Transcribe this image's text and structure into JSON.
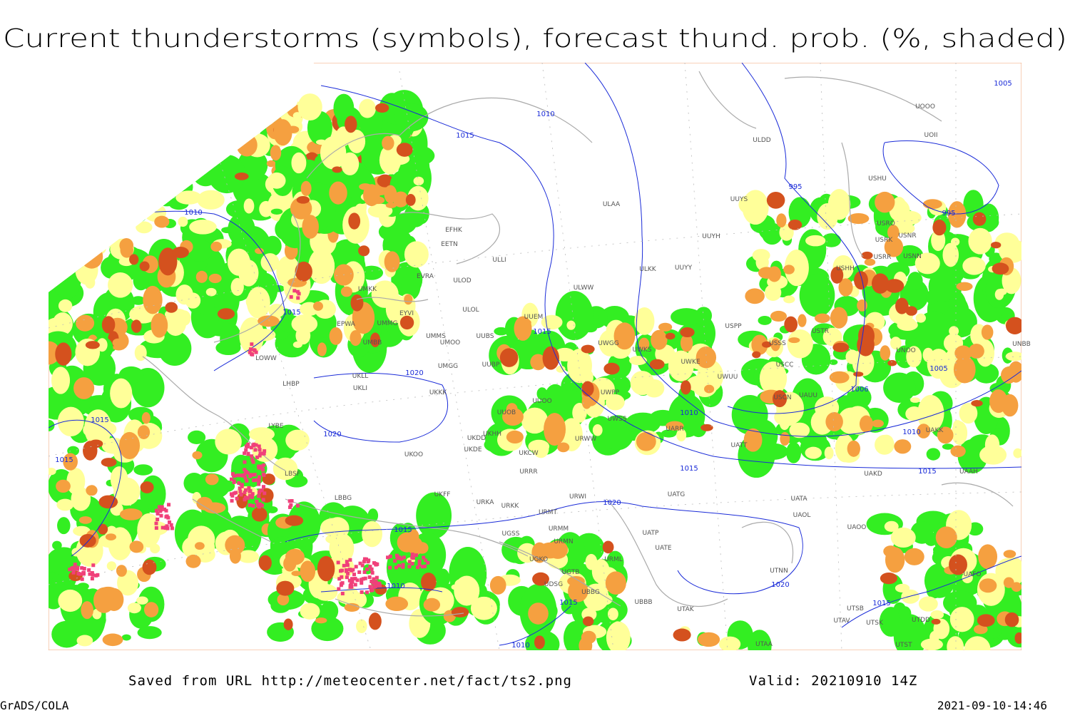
{
  "header": {
    "title": "Current thunderstorms (symbols), forecast thund. prob. (%, shaded)"
  },
  "footer": {
    "source": "Saved from URL http://meteocenter.net/fact/ts2.png",
    "valid": "Valid: 20210910 14Z",
    "software": "GrADS/COLA",
    "timestamp": "2021-09-10-14:46"
  },
  "map": {
    "stations": [
      "EFHK",
      "EETN",
      "EVRA",
      "ULLI",
      "UMKK",
      "ULOD",
      "EYVI",
      "ULOL",
      "UMMG",
      "EPWA",
      "UMMS",
      "UMOO",
      "UUBS",
      "UMBB",
      "LOWW",
      "UKLL",
      "UKLI",
      "LHBP",
      "UMGG",
      "UUBP",
      "UKKK",
      "UUOO",
      "UUOB",
      "LYBE",
      "UKHH",
      "UKDD",
      "UKOO",
      "UKDE",
      "UKCW",
      "URRR",
      "LBSF",
      "LBBG",
      "UKFF",
      "URKA",
      "URKK",
      "URMT",
      "URWI",
      "URMM",
      "URMN",
      "URML",
      "UGSS",
      "UGKO",
      "UGTB",
      "UDSG",
      "UBBG",
      "UBBB",
      "ULAA",
      "ULDD",
      "UUYS",
      "UUYH",
      "ULKK",
      "UUYY",
      "ULWW",
      "UUEM",
      "UWGG",
      "UWKS",
      "UWKE",
      "UWUU",
      "UWPP",
      "UWSS",
      "UARR",
      "URWW",
      "UATT",
      "USPP",
      "USSS",
      "USCC",
      "USCN",
      "USHH",
      "USTR",
      "UNOO",
      "UNBB",
      "USRR",
      "USNN",
      "USRK",
      "USNR",
      "USRO",
      "USHU",
      "UOII",
      "UOOO",
      "UAKD",
      "UAAH",
      "UAKK",
      "UATG",
      "UATA",
      "UAOL",
      "UAOO",
      "UATE",
      "UATP",
      "UTNN",
      "UTAK",
      "UTSB",
      "UTAV",
      "UTSK",
      "UTDD",
      "UTST",
      "UTAA",
      "UAFO",
      "UAUU"
    ],
    "isobar_labels": [
      1010,
      1015,
      1010,
      1015,
      1015,
      995,
      995,
      1005,
      1006,
      1005,
      1010,
      1010,
      1015,
      1015,
      1020,
      1020,
      1015,
      1015,
      1020,
      1015,
      1010,
      1015,
      1010,
      1020,
      1015
    ]
  }
}
